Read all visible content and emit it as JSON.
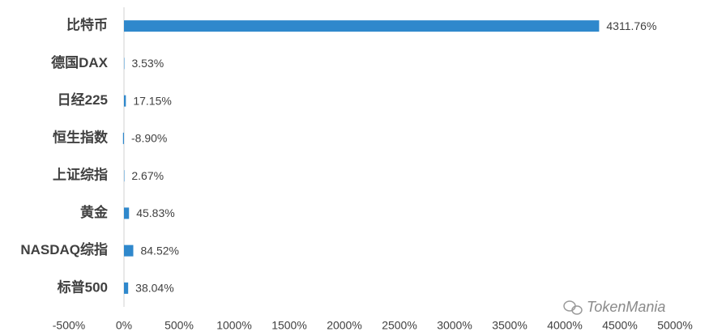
{
  "chart_data": {
    "type": "hbar",
    "categories": [
      "比特币",
      "德国DAX",
      "日经225",
      "恒生指数",
      "上证综指",
      "黄金",
      "NASDAQ综指",
      "标普500"
    ],
    "values": [
      4311.76,
      3.53,
      17.15,
      -8.9,
      2.67,
      45.83,
      84.52,
      38.04
    ],
    "value_labels": [
      "4311.76%",
      "3.53%",
      "17.15%",
      "-8.90%",
      "2.67%",
      "45.83%",
      "84.52%",
      "38.04%"
    ],
    "color": "#2f88cc",
    "xlim": [
      -500,
      5000
    ],
    "xticks": [
      {
        "value": -500,
        "label": "-500%"
      },
      {
        "value": 0,
        "label": "0%"
      },
      {
        "value": 500,
        "label": "500%"
      },
      {
        "value": 1000,
        "label": "1000%"
      },
      {
        "value": 1500,
        "label": "1500%"
      },
      {
        "value": 2000,
        "label": "2000%"
      },
      {
        "value": 2500,
        "label": "2500%"
      },
      {
        "value": 3000,
        "label": "3000%"
      },
      {
        "value": 3500,
        "label": "3500%"
      },
      {
        "value": 4000,
        "label": "4000%"
      },
      {
        "value": 4500,
        "label": "4500%"
      },
      {
        "value": 5000,
        "label": "5000%"
      }
    ],
    "grid": false,
    "watermark": "TokenMania"
  }
}
